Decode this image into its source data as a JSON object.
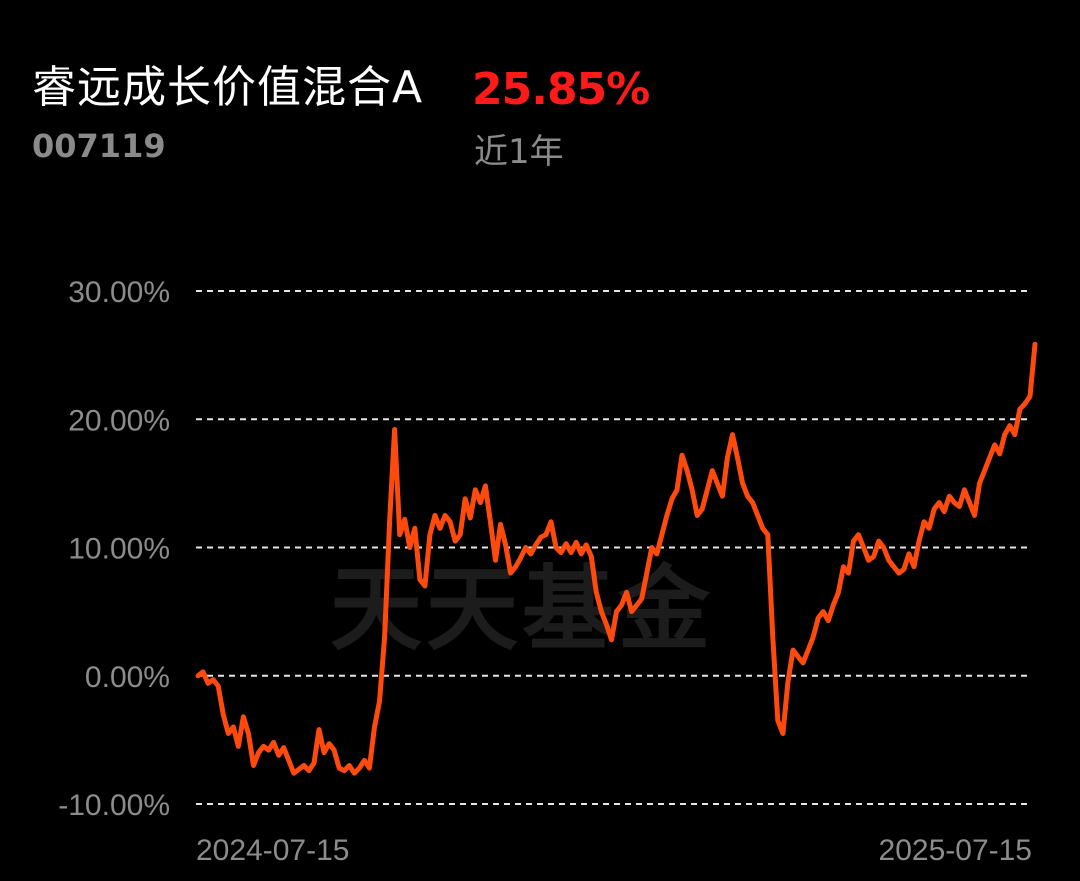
{
  "header": {
    "fund_name": "睿远成长价值混合A",
    "fund_code": "007119",
    "return_value": "25.85%",
    "return_period": "近1年",
    "return_color": "#ff1a1a"
  },
  "watermark": "天天基金",
  "chart_data": {
    "type": "line",
    "x_range": [
      "2024-07-15",
      "2025-07-15"
    ],
    "xtick_labels": [
      "2024-07-15",
      "2025-07-15"
    ],
    "ylim": [
      -10,
      30
    ],
    "yticks": [
      30,
      20,
      10,
      0,
      -10
    ],
    "ytick_labels": [
      "30.00%",
      "20.00%",
      "10.00%",
      "0.00%",
      "-10.00%"
    ],
    "grid": true,
    "line_color": "#ff4a0d",
    "series": [
      {
        "values": [
          0.0,
          0.3,
          -0.6,
          -0.3,
          -0.8,
          -3.0,
          -4.5,
          -4.0,
          -5.5,
          -3.2,
          -4.5,
          -7.0,
          -6.0,
          -5.5,
          -5.8,
          -5.2,
          -6.2,
          -5.6,
          -6.6,
          -7.6,
          -7.3,
          -7.0,
          -7.4,
          -6.8,
          -4.2,
          -6.0,
          -5.3,
          -5.8,
          -7.2,
          -7.4,
          -7.0,
          -7.6,
          -7.2,
          -6.6,
          -7.2,
          -4.0,
          -2.0,
          3.0,
          12.0,
          19.2,
          11.0,
          12.2,
          10.0,
          11.5,
          7.5,
          7.0,
          11.0,
          12.5,
          11.5,
          12.5,
          12.0,
          10.5,
          11.0,
          13.8,
          12.3,
          14.5,
          13.5,
          14.8,
          12.0,
          9.0,
          11.8,
          10.2,
          8.0,
          8.5,
          9.2,
          10.0,
          9.5,
          10.2,
          10.8,
          11.0,
          12.0,
          10.0,
          9.6,
          10.3,
          9.6,
          10.4,
          9.5,
          10.2,
          9.3,
          6.5,
          5.0,
          4.0,
          2.8,
          5.0,
          5.5,
          6.5,
          5.0,
          5.5,
          6.0,
          8.0,
          10.0,
          9.5,
          11.0,
          12.5,
          13.8,
          14.5,
          17.2,
          16.0,
          14.5,
          12.5,
          13.0,
          14.5,
          16.0,
          15.0,
          14.0,
          17.0,
          18.8,
          17.0,
          15.0,
          14.0,
          13.5,
          12.5,
          11.5,
          11.0,
          3.0,
          -3.5,
          -4.5,
          -0.5,
          2.0,
          1.5,
          1.0,
          2.0,
          3.0,
          4.5,
          5.0,
          4.3,
          5.5,
          6.5,
          8.5,
          8.0,
          10.5,
          11.0,
          10.0,
          9.0,
          9.3,
          10.5,
          10.0,
          9.0,
          8.5,
          8.0,
          8.3,
          9.5,
          8.5,
          10.5,
          12.0,
          11.5,
          13.0,
          13.5,
          12.8,
          14.0,
          13.5,
          13.2,
          14.5,
          13.5,
          12.5,
          15.0,
          16.0,
          17.0,
          18.0,
          17.3,
          18.8,
          19.5,
          18.8,
          20.8,
          21.2,
          21.8,
          25.85
        ]
      }
    ]
  }
}
